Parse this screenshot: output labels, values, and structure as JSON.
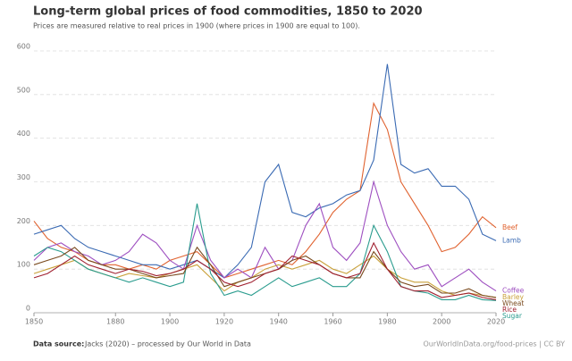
{
  "chart_data": {
    "type": "line",
    "title": "Long-term global prices of food commodities, 1850 to 2020",
    "subtitle": "Prices are measured relative to real prices in 1900 (where prices in 1900 are equal to 100).",
    "source_label": "Data source:",
    "source": "Jacks (2020) – processed by Our World in Data",
    "credit": "OurWorldInData.org/food-prices | CC BY",
    "x": [
      1850,
      1855,
      1860,
      1865,
      1870,
      1875,
      1880,
      1885,
      1890,
      1895,
      1900,
      1905,
      1910,
      1915,
      1920,
      1925,
      1930,
      1935,
      1940,
      1945,
      1950,
      1955,
      1960,
      1965,
      1970,
      1975,
      1980,
      1985,
      1990,
      1995,
      2000,
      2005,
      2010,
      2015,
      2020
    ],
    "xlim": [
      1850,
      2020
    ],
    "xticks": [
      1850,
      1880,
      1900,
      1920,
      1940,
      1960,
      1980,
      2000,
      2020
    ],
    "ylim": [
      0,
      600
    ],
    "yticks": [
      0,
      100,
      200,
      300,
      400,
      500,
      600
    ],
    "grid": true,
    "series": [
      {
        "name": "Beef",
        "color": "#e0622f",
        "values": [
          210,
          170,
          150,
          140,
          120,
          110,
          110,
          100,
          110,
          100,
          120,
          130,
          140,
          110,
          80,
          90,
          100,
          110,
          120,
          110,
          140,
          180,
          230,
          260,
          280,
          480,
          420,
          300,
          250,
          200,
          140,
          150,
          180,
          220,
          195
        ]
      },
      {
        "name": "Lamb",
        "color": "#3a6ab3",
        "values": [
          180,
          190,
          200,
          170,
          150,
          140,
          130,
          120,
          110,
          110,
          100,
          110,
          120,
          100,
          80,
          110,
          150,
          300,
          340,
          230,
          220,
          240,
          250,
          270,
          280,
          350,
          570,
          340,
          320,
          330,
          290,
          290,
          260,
          180,
          165
        ]
      },
      {
        "name": "Coffee",
        "color": "#9e4fc0",
        "values": [
          120,
          150,
          160,
          140,
          130,
          110,
          120,
          140,
          180,
          160,
          120,
          100,
          200,
          120,
          80,
          100,
          80,
          150,
          100,
          120,
          200,
          250,
          150,
          120,
          160,
          300,
          200,
          140,
          100,
          110,
          60,
          80,
          100,
          70,
          50
        ]
      },
      {
        "name": "Barley",
        "color": "#c9a13a",
        "values": [
          90,
          100,
          110,
          120,
          100,
          90,
          80,
          90,
          85,
          80,
          90,
          100,
          110,
          80,
          50,
          70,
          80,
          100,
          110,
          100,
          110,
          120,
          100,
          90,
          110,
          130,
          100,
          80,
          70,
          70,
          50,
          40,
          45,
          40,
          35
        ]
      },
      {
        "name": "Sugar",
        "color": "#2a9c8e",
        "values": [
          130,
          150,
          140,
          120,
          100,
          90,
          80,
          70,
          80,
          70,
          60,
          70,
          250,
          90,
          40,
          50,
          40,
          60,
          80,
          60,
          70,
          80,
          60,
          60,
          90,
          200,
          140,
          60,
          50,
          45,
          30,
          30,
          40,
          30,
          28
        ]
      },
      {
        "name": "Wheat",
        "color": "#7a4a1e",
        "values": [
          110,
          120,
          130,
          150,
          120,
          110,
          100,
          100,
          90,
          80,
          85,
          90,
          150,
          110,
          60,
          70,
          80,
          90,
          100,
          120,
          130,
          110,
          90,
          80,
          80,
          140,
          100,
          70,
          60,
          65,
          45,
          45,
          55,
          40,
          35
        ]
      },
      {
        "name": "Rice",
        "color": "#a02030",
        "values": [
          80,
          90,
          110,
          130,
          110,
          100,
          90,
          100,
          95,
          85,
          90,
          100,
          120,
          100,
          70,
          60,
          70,
          90,
          100,
          130,
          120,
          110,
          90,
          80,
          90,
          160,
          100,
          60,
          50,
          50,
          35,
          40,
          45,
          35,
          30
        ]
      }
    ]
  }
}
